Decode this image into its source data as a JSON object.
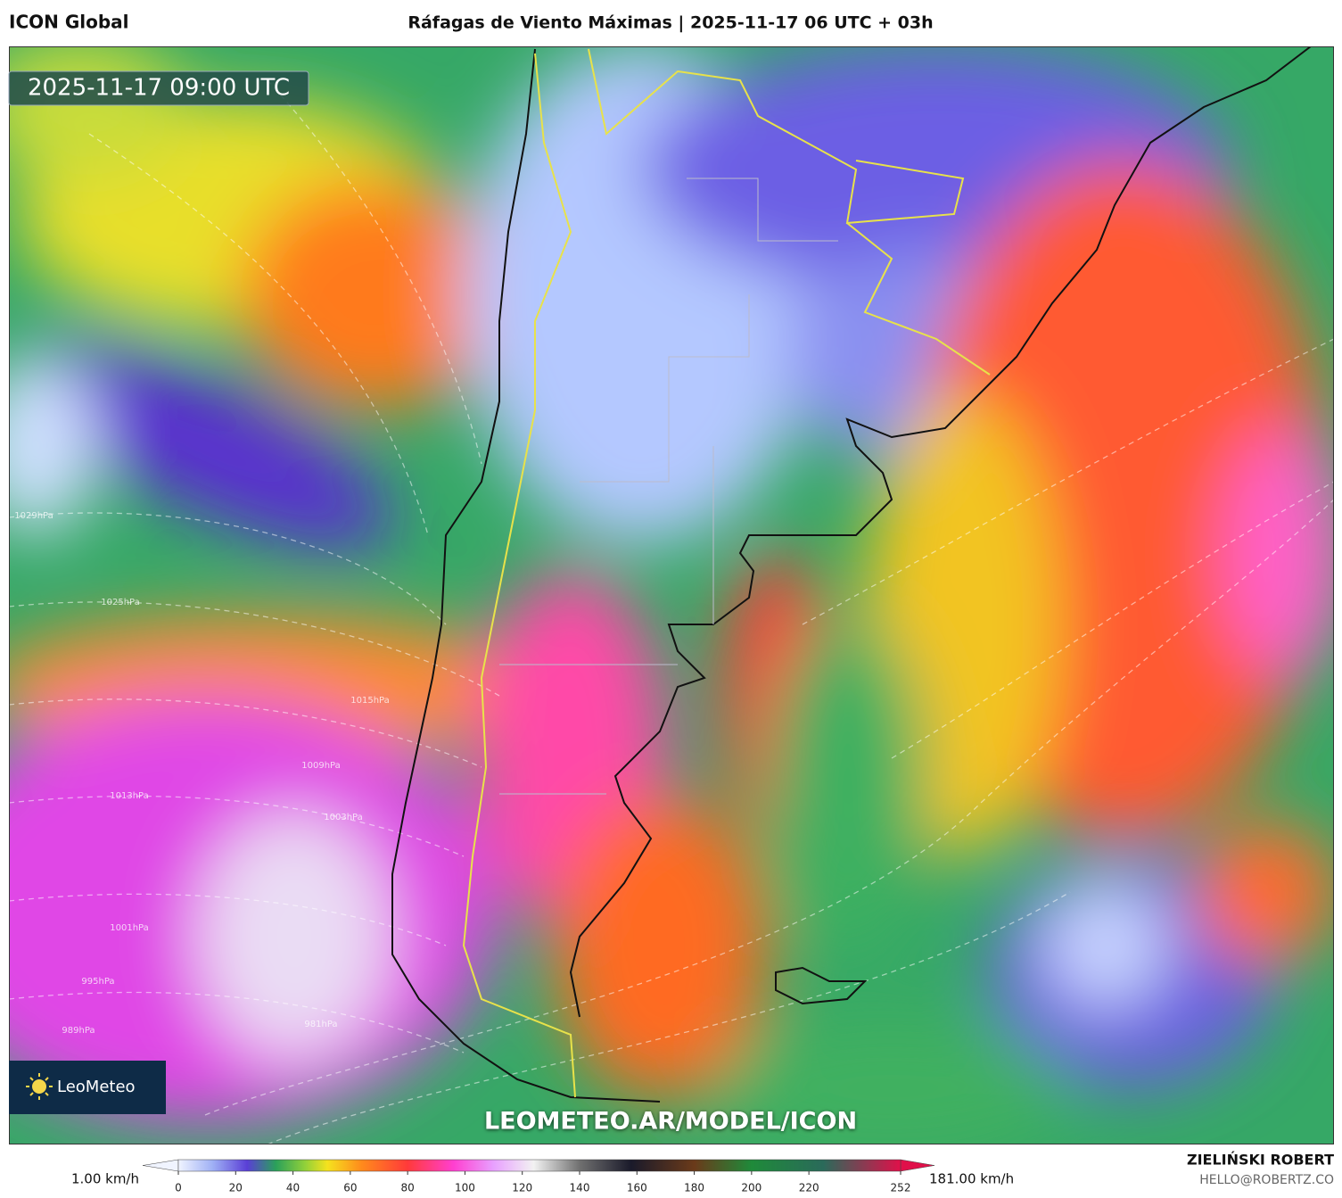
{
  "header": {
    "model": "ICON Global",
    "title": "Ráfagas de Viento Máximas | 2025-11-17 06 UTC + 03h"
  },
  "timestamp": "2025-11-17 09:00 UTC",
  "logo": "LeoMeteo",
  "watermark": "LEOMETEO.AR/MODEL/ICON",
  "isobar_labels": [
    "1029hPa",
    "1025hPa",
    "1015hPa",
    "1013hPa",
    "1009hPa",
    "1003hPa",
    "1001hPa",
    "995hPa",
    "989hPa",
    "981hPa"
  ],
  "colorbar": {
    "min_label": "1.00 km/h",
    "max_label": "181.00 km/h",
    "ticks": [
      0,
      20,
      40,
      60,
      80,
      100,
      120,
      140,
      160,
      180,
      200,
      220,
      252
    ],
    "colormap": [
      {
        "value": 0,
        "color": "#f0f4ff"
      },
      {
        "value": 12,
        "color": "#9fb0f5"
      },
      {
        "value": 24,
        "color": "#5a3fd6"
      },
      {
        "value": 34,
        "color": "#2aa05a"
      },
      {
        "value": 44,
        "color": "#8fd03a"
      },
      {
        "value": 52,
        "color": "#f5e21e"
      },
      {
        "value": 64,
        "color": "#ff8a1c"
      },
      {
        "value": 80,
        "color": "#ff3a3a"
      },
      {
        "value": 96,
        "color": "#ff3fd0"
      },
      {
        "value": 110,
        "color": "#e8a0ff"
      },
      {
        "value": 124,
        "color": "#f2f2f2"
      },
      {
        "value": 140,
        "color": "#707070"
      },
      {
        "value": 158,
        "color": "#1a1a2a"
      },
      {
        "value": 180,
        "color": "#6a3a1a"
      },
      {
        "value": 200,
        "color": "#1f8a3a"
      },
      {
        "value": 225,
        "color": "#2a6a5a"
      },
      {
        "value": 252,
        "color": "#e0104a"
      }
    ]
  },
  "credits": {
    "author": "ZIELIŃSKI ROBERT",
    "email": "HELLO@ROBERTZ.CO"
  }
}
